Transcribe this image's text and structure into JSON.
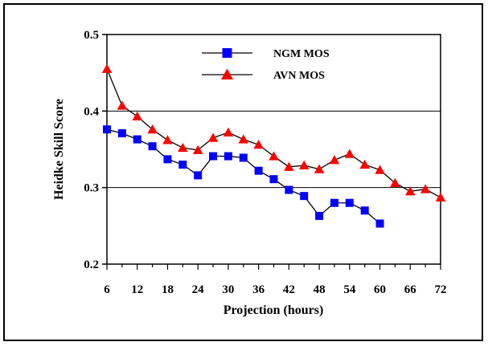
{
  "chart_data": {
    "type": "line",
    "title": "",
    "xlabel": "Projection (hours)",
    "ylabel": "Heidke Skill Score",
    "xlim": [
      6,
      72
    ],
    "ylim": [
      0.2,
      0.5
    ],
    "x_ticks": [
      "6",
      "12",
      "18",
      "24",
      "30",
      "36",
      "42",
      "48",
      "54",
      "60",
      "66",
      "72"
    ],
    "y_ticks": [
      "0.2",
      "0.3",
      "0.4",
      "0.5"
    ],
    "grid": "horizontal at 0.3 and 0.4",
    "legend_position": "top-center",
    "series": [
      {
        "name": "NGM MOS",
        "marker": "square",
        "color": "#0000ff",
        "x": [
          6,
          9,
          12,
          15,
          18,
          21,
          24,
          27,
          30,
          33,
          36,
          39,
          42,
          45,
          48,
          51,
          54,
          57,
          60
        ],
        "y": [
          0.376,
          0.371,
          0.363,
          0.354,
          0.337,
          0.33,
          0.316,
          0.341,
          0.341,
          0.339,
          0.322,
          0.311,
          0.297,
          0.289,
          0.263,
          0.28,
          0.28,
          0.27,
          0.253
        ]
      },
      {
        "name": "AVN MOS",
        "marker": "triangle",
        "color": "#ff0000",
        "x": [
          6,
          9,
          12,
          15,
          18,
          21,
          24,
          27,
          30,
          33,
          36,
          39,
          42,
          45,
          48,
          51,
          54,
          57,
          60,
          63,
          66,
          69,
          72
        ],
        "y": [
          0.455,
          0.407,
          0.393,
          0.376,
          0.362,
          0.352,
          0.349,
          0.365,
          0.372,
          0.363,
          0.356,
          0.341,
          0.327,
          0.329,
          0.324,
          0.336,
          0.344,
          0.33,
          0.323,
          0.306,
          0.295,
          0.298,
          0.287
        ]
      }
    ]
  }
}
